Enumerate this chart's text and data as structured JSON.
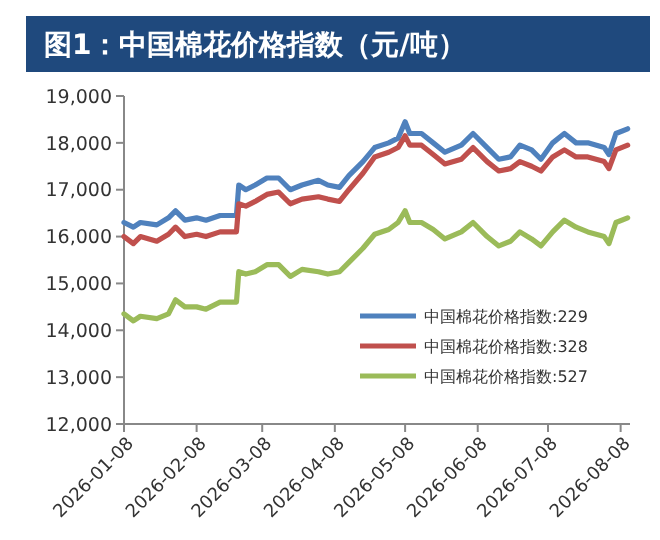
{
  "chart_data": {
    "type": "line",
    "title": "图1：中国棉花价格指数（元/吨）",
    "x": [
      "2026-01-08",
      "2026-01-12",
      "2026-01-15",
      "2026-01-22",
      "2026-01-27",
      "2026-01-30",
      "2026-02-03",
      "2026-02-08",
      "2026-02-12",
      "2026-02-18",
      "2026-02-25",
      "2026-02-26",
      "2026-03-01",
      "2026-03-05",
      "2026-03-10",
      "2026-03-15",
      "2026-03-20",
      "2026-03-25",
      "2026-04-01",
      "2026-04-05",
      "2026-04-10",
      "2026-04-14",
      "2026-04-20",
      "2026-04-25",
      "2026-05-01",
      "2026-05-05",
      "2026-05-08",
      "2026-05-10",
      "2026-05-15",
      "2026-05-20",
      "2026-05-25",
      "2026-06-01",
      "2026-06-06",
      "2026-06-12",
      "2026-06-17",
      "2026-06-22",
      "2026-06-26",
      "2026-07-01",
      "2026-07-05",
      "2026-07-10",
      "2026-07-15",
      "2026-07-20",
      "2026-07-25",
      "2026-08-01",
      "2026-08-03",
      "2026-08-06",
      "2026-08-11"
    ],
    "series": [
      {
        "name": "中国棉花价格指数:229",
        "color": "#4f81bd",
        "values": [
          16300,
          16200,
          16300,
          16250,
          16400,
          16550,
          16350,
          16400,
          16350,
          16450,
          16450,
          17100,
          17000,
          17100,
          17250,
          17250,
          17000,
          17100,
          17200,
          17100,
          17050,
          17300,
          17600,
          17900,
          18000,
          18100,
          18450,
          18200,
          18200,
          18000,
          17800,
          17950,
          18200,
          17900,
          17650,
          17700,
          17950,
          17850,
          17650,
          18000,
          18200,
          18000,
          18000,
          17900,
          17750,
          18200,
          18300
        ]
      },
      {
        "name": "中国棉花价格指数:328",
        "color": "#c0504d",
        "values": [
          16000,
          15850,
          16000,
          15900,
          16050,
          16200,
          16000,
          16050,
          16000,
          16100,
          16100,
          16700,
          16650,
          16750,
          16900,
          16950,
          16700,
          16800,
          16850,
          16800,
          16750,
          17000,
          17350,
          17700,
          17800,
          17900,
          18150,
          17950,
          17950,
          17750,
          17550,
          17650,
          17900,
          17600,
          17400,
          17450,
          17600,
          17500,
          17400,
          17700,
          17850,
          17700,
          17700,
          17600,
          17450,
          17850,
          17950
        ]
      },
      {
        "name": "中国棉花价格指数:527",
        "color": "#9bbb59",
        "values": [
          14350,
          14200,
          14300,
          14250,
          14350,
          14650,
          14500,
          14500,
          14450,
          14600,
          14600,
          15250,
          15200,
          15250,
          15400,
          15400,
          15150,
          15300,
          15250,
          15200,
          15250,
          15450,
          15750,
          16050,
          16150,
          16300,
          16550,
          16300,
          16300,
          16150,
          15950,
          16100,
          16300,
          16000,
          15800,
          15900,
          16100,
          15950,
          15800,
          16100,
          16350,
          16200,
          16100,
          16000,
          15850,
          16300,
          16400
        ]
      }
    ],
    "xlim": [
      "2026-01-08",
      "2026-08-12"
    ],
    "xticks": [
      "2026-01-08",
      "2026-02-08",
      "2026-03-08",
      "2026-04-08",
      "2026-05-08",
      "2026-06-08",
      "2026-07-08",
      "2026-08-08"
    ],
    "ylim": [
      12000,
      19000
    ],
    "yticks": [
      {
        "value": 12000,
        "label": "12,000"
      },
      {
        "value": 13000,
        "label": "13,000"
      },
      {
        "value": 14000,
        "label": "14,000"
      },
      {
        "value": 15000,
        "label": "15,000"
      },
      {
        "value": 16000,
        "label": "16,000"
      },
      {
        "value": 17000,
        "label": "17,000"
      },
      {
        "value": 18000,
        "label": "18,000"
      },
      {
        "value": 19000,
        "label": "19,000"
      }
    ],
    "grid": false,
    "legend": "right",
    "marker": "none",
    "line_style": "solid"
  }
}
